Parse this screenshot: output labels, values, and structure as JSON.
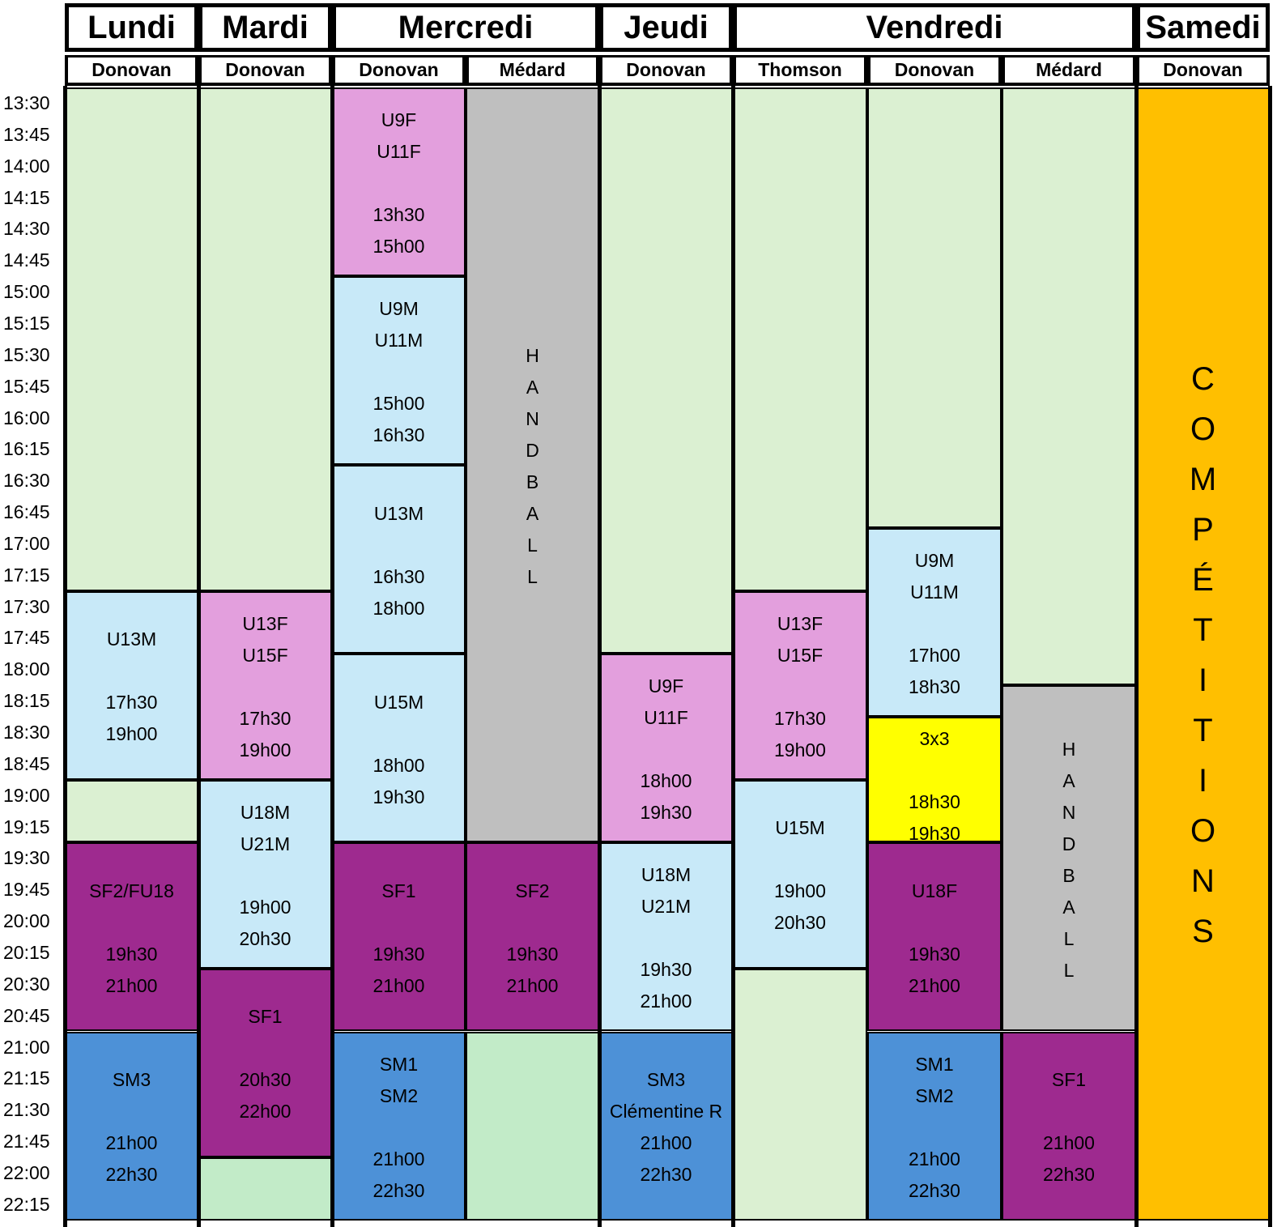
{
  "times": [
    "13:30",
    "13:45",
    "14:00",
    "14:15",
    "14:30",
    "14:45",
    "15:00",
    "15:15",
    "15:30",
    "15:45",
    "16:00",
    "16:15",
    "16:30",
    "16:45",
    "17:00",
    "17:15",
    "17:30",
    "17:45",
    "18:00",
    "18:15",
    "18:30",
    "18:45",
    "19:00",
    "19:15",
    "19:30",
    "19:45",
    "20:00",
    "20:15",
    "20:30",
    "20:45",
    "21:00",
    "21:15",
    "21:30",
    "21:45",
    "22:00",
    "22:15"
  ],
  "days": [
    "Lundi",
    "Mardi",
    "Mercredi",
    "Jeudi",
    "Vendredi",
    "Samedi"
  ],
  "venues": [
    "Donovan",
    "Donovan",
    "Donovan",
    "Médard",
    "Donovan",
    "Thomson",
    "Donovan",
    "Médard",
    "Donovan"
  ],
  "colors": {
    "free": "#dbf0d2",
    "free_alt": "#c2ebc8",
    "girls": "#e39fdd",
    "boys": "#c8e9f8",
    "handball": "#bfbfbf",
    "women": "#9e2a8f",
    "men": "#4d91d7",
    "threebythree": "#ffff00",
    "competitions": "#ffbf00"
  },
  "blocks": [
    {
      "col": 0,
      "start": 0,
      "end": 16,
      "color": "free",
      "lines": []
    },
    {
      "col": 0,
      "start": 16,
      "end": 22,
      "color": "boys",
      "lines": [
        "U13M",
        "",
        "17h30",
        "19h00"
      ]
    },
    {
      "col": 0,
      "start": 22,
      "end": 24,
      "color": "free",
      "lines": []
    },
    {
      "col": 0,
      "start": 24,
      "end": 30,
      "color": "women",
      "lines": [
        "SF2/FU18",
        "",
        "19h30",
        "21h00"
      ]
    },
    {
      "col": 0,
      "start": 30,
      "end": 36,
      "color": "men",
      "lines": [
        "SM3",
        "",
        "21h00",
        "22h30"
      ]
    },
    {
      "col": 1,
      "start": 0,
      "end": 16,
      "color": "free",
      "lines": []
    },
    {
      "col": 1,
      "start": 16,
      "end": 22,
      "color": "girls",
      "lines": [
        "U13F",
        "U15F",
        "",
        "17h30",
        "19h00"
      ]
    },
    {
      "col": 1,
      "start": 22,
      "end": 28,
      "color": "boys",
      "lines": [
        "U18M",
        "U21M",
        "",
        "19h00",
        "20h30"
      ]
    },
    {
      "col": 1,
      "start": 28,
      "end": 34,
      "color": "women",
      "lines": [
        "SF1",
        "",
        "20h30",
        "22h00"
      ]
    },
    {
      "col": 1,
      "start": 34,
      "end": 36,
      "color": "free_alt",
      "lines": []
    },
    {
      "col": 2,
      "start": 0,
      "end": 6,
      "color": "girls",
      "lines": [
        "U9F",
        "U11F",
        "",
        "13h30",
        "15h00"
      ]
    },
    {
      "col": 2,
      "start": 6,
      "end": 12,
      "color": "boys",
      "lines": [
        "U9M",
        "U11M",
        "",
        "15h00",
        "16h30"
      ]
    },
    {
      "col": 2,
      "start": 12,
      "end": 18,
      "color": "boys",
      "lines": [
        "U13M",
        "",
        "16h30",
        "18h00"
      ]
    },
    {
      "col": 2,
      "start": 18,
      "end": 24,
      "color": "boys",
      "lines": [
        "U15M",
        "",
        "18h00",
        "19h30"
      ]
    },
    {
      "col": 2,
      "start": 24,
      "end": 30,
      "color": "women",
      "lines": [
        "SF1",
        "",
        "19h30",
        "21h00"
      ]
    },
    {
      "col": 2,
      "start": 30,
      "end": 36,
      "color": "men",
      "lines": [
        "SM1",
        "SM2",
        "",
        "21h00",
        "22h30"
      ]
    },
    {
      "col": 3,
      "start": 0,
      "end": 24,
      "color": "handball",
      "lines": [
        "H",
        "A",
        "N",
        "D",
        "B",
        "A",
        "L",
        "L"
      ],
      "vertical": true
    },
    {
      "col": 3,
      "start": 24,
      "end": 30,
      "color": "women",
      "lines": [
        "SF2",
        "",
        "19h30",
        "21h00"
      ]
    },
    {
      "col": 3,
      "start": 30,
      "end": 36,
      "color": "free_alt",
      "lines": []
    },
    {
      "col": 4,
      "start": 0,
      "end": 18,
      "color": "free",
      "lines": []
    },
    {
      "col": 4,
      "start": 18,
      "end": 24,
      "color": "girls",
      "lines": [
        "U9F",
        "U11F",
        "",
        "18h00",
        "19h30"
      ]
    },
    {
      "col": 4,
      "start": 24,
      "end": 30,
      "color": "boys",
      "lines": [
        "U18M",
        "U21M",
        "",
        "19h30",
        "21h00"
      ]
    },
    {
      "col": 4,
      "start": 30,
      "end": 36,
      "color": "men",
      "lines": [
        "SM3",
        "Clémentine R",
        "21h00",
        "22h30"
      ]
    },
    {
      "col": 5,
      "start": 0,
      "end": 16,
      "color": "free",
      "lines": []
    },
    {
      "col": 5,
      "start": 16,
      "end": 22,
      "color": "girls",
      "lines": [
        "U13F",
        "U15F",
        "",
        "17h30",
        "19h00"
      ]
    },
    {
      "col": 5,
      "start": 22,
      "end": 28,
      "color": "boys",
      "lines": [
        "U15M",
        "",
        "19h00",
        "20h30"
      ]
    },
    {
      "col": 5,
      "start": 28,
      "end": 36,
      "color": "free",
      "lines": []
    },
    {
      "col": 6,
      "start": 0,
      "end": 14,
      "color": "free",
      "lines": []
    },
    {
      "col": 6,
      "start": 14,
      "end": 20,
      "color": "boys",
      "lines": [
        "U9M",
        "U11M",
        "",
        "17h00",
        "18h30"
      ]
    },
    {
      "col": 6,
      "start": 20,
      "end": 24,
      "color": "threebythree",
      "lines": [
        "3x3",
        "",
        "18h30",
        "19h30"
      ]
    },
    {
      "col": 6,
      "start": 24,
      "end": 30,
      "color": "women",
      "lines": [
        "U18F",
        "",
        "19h30",
        "21h00"
      ]
    },
    {
      "col": 6,
      "start": 30,
      "end": 36,
      "color": "men",
      "lines": [
        "SM1",
        "SM2",
        "",
        "21h00",
        "22h30"
      ]
    },
    {
      "col": 7,
      "start": 0,
      "end": 19,
      "color": "free",
      "lines": []
    },
    {
      "col": 7,
      "start": 19,
      "end": 30,
      "color": "handball",
      "lines": [
        "H",
        "A",
        "N",
        "D",
        "B",
        "A",
        "L",
        "L"
      ],
      "vertical": true
    },
    {
      "col": 7,
      "start": 30,
      "end": 36,
      "color": "women",
      "lines": [
        "SF1",
        "",
        "21h00",
        "22h30"
      ]
    },
    {
      "col": 8,
      "start": 0,
      "end": 36,
      "color": "competitions",
      "lines": [
        "C",
        "O",
        "M",
        "P",
        "É",
        "T",
        "I",
        "T",
        "I",
        "O",
        "N",
        "S"
      ],
      "vertical": true,
      "big": true
    }
  ]
}
